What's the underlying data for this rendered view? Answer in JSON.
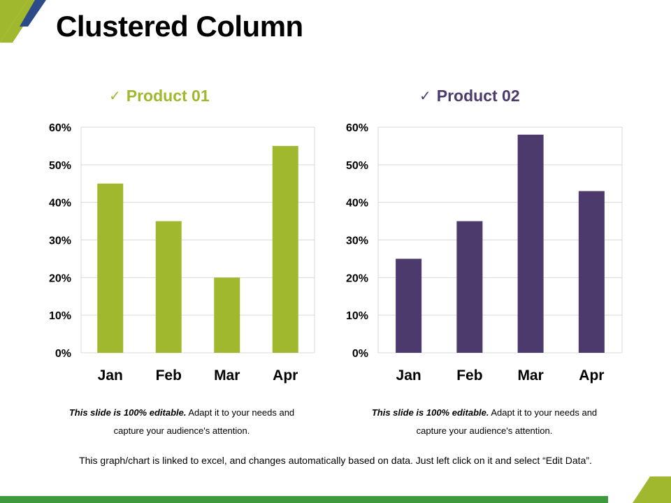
{
  "slide": {
    "title": "Clustered Column",
    "footer": "This graph/chart is linked to excel, and changes automatically  based on data. Just left click on it and select “Edit Data”."
  },
  "colors": {
    "green": "#a0b82d",
    "purple": "#4b3a6b",
    "navy": "#2d4a8a"
  },
  "icons": {
    "heading_check": "check-icon"
  },
  "notes": [
    {
      "bold": "This slide is 100% editable.",
      "rest": "Adapt  it to your needs and capture your audience's attention."
    },
    {
      "bold": "This slide is 100% editable.",
      "rest": "Adapt  it to your needs and capture your audience's attention."
    }
  ],
  "chart_data": [
    {
      "type": "bar",
      "title": "Product 01",
      "categories": [
        "Jan",
        "Feb",
        "Mar",
        "Apr"
      ],
      "values": [
        45,
        35,
        20,
        55
      ],
      "ylim": [
        0,
        60
      ],
      "yticks": [
        0,
        10,
        20,
        30,
        40,
        50,
        60
      ],
      "ytick_labels": [
        "0%",
        "10%",
        "20%",
        "30%",
        "40%",
        "50%",
        "60%"
      ],
      "xlabel": "",
      "ylabel": "",
      "grid": true,
      "color": "#a0b82d"
    },
    {
      "type": "bar",
      "title": "Product 02",
      "categories": [
        "Jan",
        "Feb",
        "Mar",
        "Apr"
      ],
      "values": [
        25,
        35,
        58,
        43
      ],
      "ylim": [
        0,
        60
      ],
      "yticks": [
        0,
        10,
        20,
        30,
        40,
        50,
        60
      ],
      "ytick_labels": [
        "0%",
        "10%",
        "20%",
        "30%",
        "40%",
        "50%",
        "60%"
      ],
      "xlabel": "",
      "ylabel": "",
      "grid": true,
      "color": "#4b3a6b"
    }
  ]
}
